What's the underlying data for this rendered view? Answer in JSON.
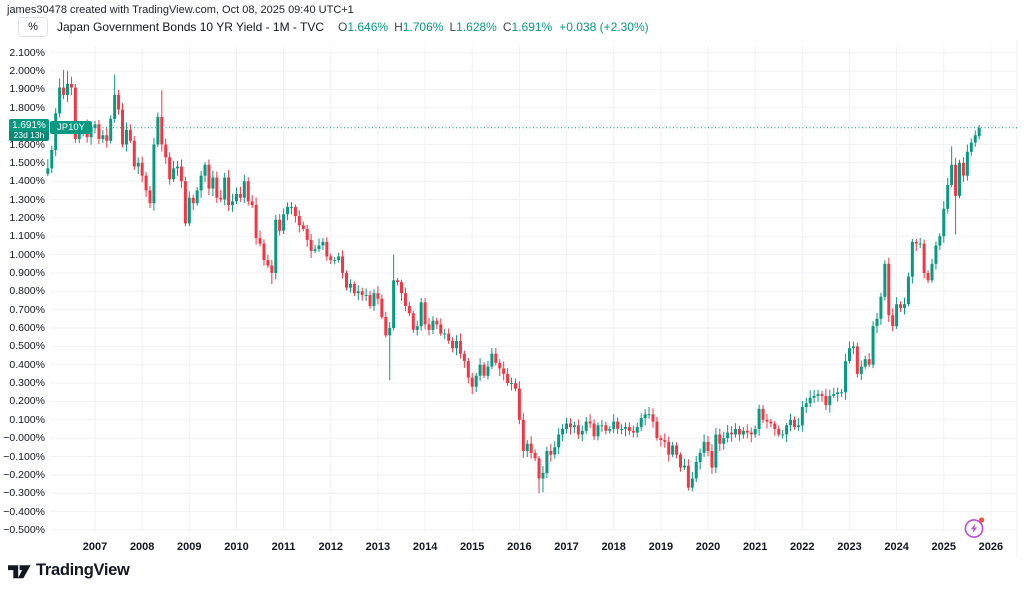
{
  "header": {
    "attribution": "james30478 created with TradingView.com, Oct 08, 2025 09:40 UTC+1"
  },
  "toolbar": {
    "unit_label": "%"
  },
  "legend": {
    "title": "Japan Government Bonds 10 YR Yield - 1M - TVC",
    "ohlc": {
      "open_label": "O",
      "open": "1.646%",
      "high_label": "H",
      "high": "1.706%",
      "low_label": "L",
      "low": "1.628%",
      "close_label": "C",
      "close": "1.691%",
      "change": "+0.038 (+2.30%)"
    }
  },
  "price_scale": {
    "tick_labels": [
      "2.100%",
      "2.000%",
      "1.900%",
      "1.800%",
      "1.700%",
      "1.600%",
      "1.500%",
      "1.400%",
      "1.300%",
      "1.200%",
      "1.100%",
      "1.000%",
      "0.900%",
      "0.800%",
      "0.700%",
      "0.600%",
      "0.500%",
      "0.400%",
      "0.300%",
      "0.200%",
      "0.100%",
      "−0.000%",
      "−0.100%",
      "−0.200%",
      "−0.300%",
      "−0.400%",
      "−0.500%"
    ]
  },
  "price_label": {
    "price": "1.691%",
    "countdown": "23d 13h"
  },
  "series_tag": {
    "symbol": "JP10Y"
  },
  "footer": {
    "brand": "TradingView"
  },
  "icons": {
    "flash": "lightning-bolt-in-circle-with-red-dot",
    "logo": "tradingview-logomark"
  },
  "colors": {
    "up": "#089981",
    "down": "#f23645",
    "grid": "#f0f2f5",
    "accent_purple": "#bb4cdd",
    "badge_red": "#f3533e"
  },
  "chart_data": {
    "type": "candlestick",
    "title": "Japan Government Bonds 10 YR Yield",
    "symbol": "JP10Y",
    "exchange": "TVC",
    "timeframe": "1M",
    "unit": "%",
    "x_start_month": "2006-01",
    "x_end_month": "2025-10",
    "y_axis": {
      "min": -0.5,
      "max": 2.1,
      "tick_step": 0.1,
      "side": "left"
    },
    "x_axis": {
      "years": [
        "2007",
        "2008",
        "2009",
        "2010",
        "2011",
        "2012",
        "2013",
        "2014",
        "2015",
        "2016",
        "2017",
        "2018",
        "2019",
        "2020",
        "2021",
        "2022",
        "2023",
        "2024",
        "2025",
        "2026"
      ]
    },
    "grid": true,
    "legend_position": "top-left",
    "last_price": 1.691,
    "last_price_line": "dotted",
    "first_open": 1.44,
    "monthly_closes": [
      1.47,
      1.57,
      1.77,
      1.91,
      1.87,
      1.93,
      1.91,
      1.63,
      1.68,
      1.7,
      1.64,
      1.69,
      1.71,
      1.63,
      1.65,
      1.62,
      1.74,
      1.87,
      1.79,
      1.6,
      1.68,
      1.62,
      1.48,
      1.5,
      1.43,
      1.35,
      1.28,
      1.6,
      1.75,
      1.6,
      1.53,
      1.41,
      1.47,
      1.48,
      1.4,
      1.17,
      1.31,
      1.28,
      1.35,
      1.43,
      1.49,
      1.36,
      1.42,
      1.31,
      1.3,
      1.42,
      1.27,
      1.29,
      1.33,
      1.31,
      1.4,
      1.29,
      1.27,
      1.09,
      1.06,
      0.97,
      0.94,
      0.9,
      1.19,
      1.13,
      1.22,
      1.26,
      1.26,
      1.21,
      1.16,
      1.14,
      1.08,
      1.02,
      1.03,
      1.05,
      1.07,
      0.99,
      0.97,
      0.97,
      0.99,
      0.9,
      0.82,
      0.84,
      0.79,
      0.8,
      0.78,
      0.78,
      0.72,
      0.79,
      0.76,
      0.66,
      0.56,
      0.6,
      0.86,
      0.85,
      0.79,
      0.72,
      0.68,
      0.59,
      0.61,
      0.74,
      0.62,
      0.59,
      0.64,
      0.62,
      0.57,
      0.57,
      0.53,
      0.49,
      0.53,
      0.46,
      0.42,
      0.33,
      0.28,
      0.34,
      0.4,
      0.34,
      0.39,
      0.46,
      0.41,
      0.38,
      0.35,
      0.3,
      0.3,
      0.27,
      0.1,
      -0.07,
      -0.03,
      -0.08,
      -0.11,
      -0.22,
      -0.19,
      -0.07,
      -0.09,
      -0.05,
      0.02,
      0.05,
      0.08,
      0.06,
      0.07,
      0.02,
      0.04,
      0.09,
      0.08,
      0.01,
      0.07,
      0.07,
      0.04,
      0.05,
      0.09,
      0.05,
      0.05,
      0.06,
      0.04,
      0.03,
      0.06,
      0.11,
      0.13,
      0.13,
      0.09,
      0.0,
      -0.01,
      -0.02,
      -0.09,
      -0.04,
      -0.09,
      -0.16,
      -0.15,
      -0.27,
      -0.22,
      -0.13,
      -0.08,
      -0.02,
      -0.07,
      -0.16,
      0.02,
      -0.03,
      0.0,
      0.03,
      0.02,
      0.05,
      0.02,
      0.04,
      0.03,
      0.02,
      0.05,
      0.16,
      0.1,
      0.09,
      0.08,
      0.05,
      0.02,
      0.02,
      0.07,
      0.1,
      0.06,
      0.07,
      0.17,
      0.19,
      0.22,
      0.23,
      0.24,
      0.23,
      0.18,
      0.23,
      0.24,
      0.25,
      0.25,
      0.42,
      0.49,
      0.5,
      0.35,
      0.39,
      0.43,
      0.4,
      0.61,
      0.65,
      0.77,
      0.95,
      0.67,
      0.61,
      0.73,
      0.71,
      0.73,
      0.88,
      1.07,
      1.06,
      1.06,
      0.9,
      0.86,
      0.95,
      1.05,
      1.1,
      1.25,
      1.38,
      1.49,
      1.32,
      1.5,
      1.43,
      1.56,
      1.61,
      1.65,
      1.691
    ],
    "ohlc_overrides": {
      "2006-01": {
        "h": 1.52
      },
      "2006-04": {
        "h": 1.96
      },
      "2006-05": {
        "h": 2.005
      },
      "2006-06": {
        "h": 2.0
      },
      "2007-06": {
        "h": 1.98
      },
      "2008-06": {
        "h": 1.895
      },
      "2008-12": {
        "l": 1.155
      },
      "2010-10": {
        "l": 0.84
      },
      "2013-04": {
        "l": 0.315
      },
      "2013-05": {
        "h": 1.0
      },
      "2016-06": {
        "l": -0.3
      },
      "2016-07": {
        "l": -0.295
      },
      "2019-08": {
        "l": -0.285
      },
      "2019-09": {
        "l": -0.29
      },
      "2023-10": {
        "h": 0.97
      },
      "2024-07": {
        "h": 1.09
      },
      "2025-03": {
        "h": 1.59
      },
      "2025-04": {
        "l": 1.11
      },
      "2025-10": {
        "o": 1.646,
        "h": 1.706,
        "l": 1.628
      }
    }
  }
}
